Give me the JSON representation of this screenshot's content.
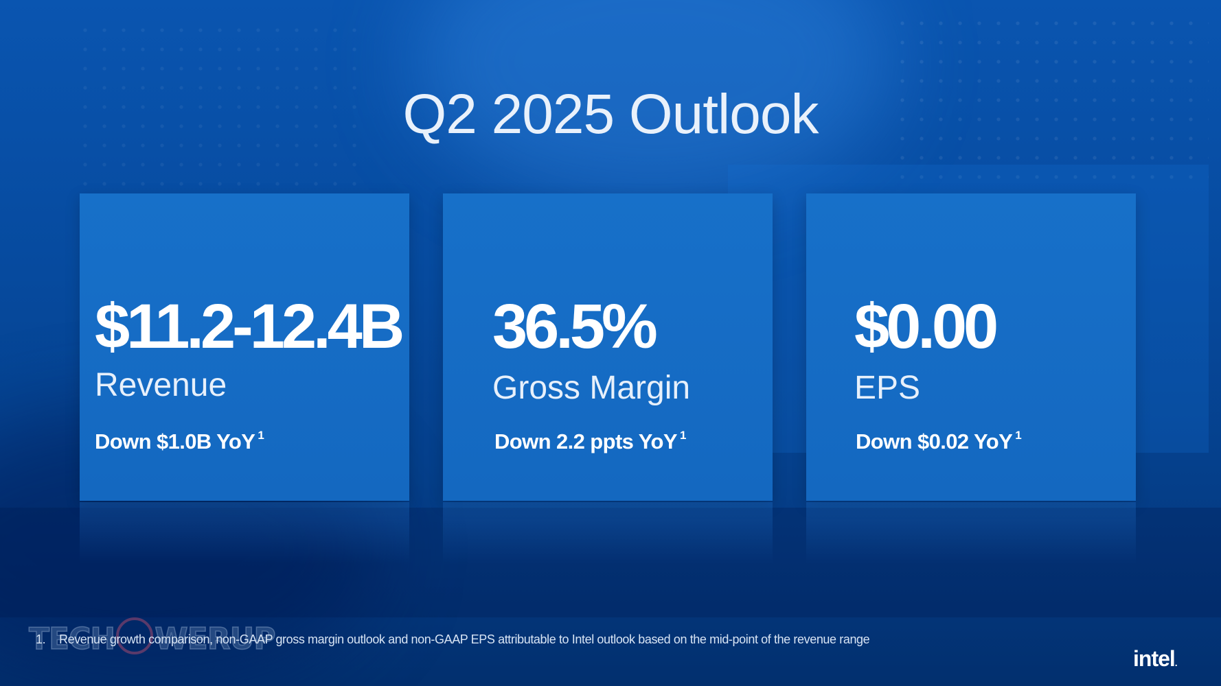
{
  "slide": {
    "title": "Q2 2025 Outlook",
    "cards": [
      {
        "value": "$11.2-12.4B",
        "label": "Revenue",
        "change": "Down $1.0B YoY",
        "footnote_ref": "1"
      },
      {
        "value": "36.5%",
        "label": "Gross Margin",
        "change": "Down 2.2 ppts YoY",
        "footnote_ref": "1"
      },
      {
        "value": "$0.00",
        "label": "EPS",
        "change": "Down $0.02 YoY",
        "footnote_ref": "1"
      }
    ],
    "footnote": {
      "number": "1.",
      "text": "Revenue growth comparison, non-GAAP gross margin outlook and non-GAAP EPS attributable to Intel outlook based on the mid-point of the revenue range"
    },
    "watermark": {
      "left": "TECH",
      "right": "WERUP"
    },
    "brand": {
      "name": "intel",
      "dot": "."
    }
  },
  "colors": {
    "background": "#064a9e",
    "card": "#1468c0",
    "text": "#ffffff"
  }
}
